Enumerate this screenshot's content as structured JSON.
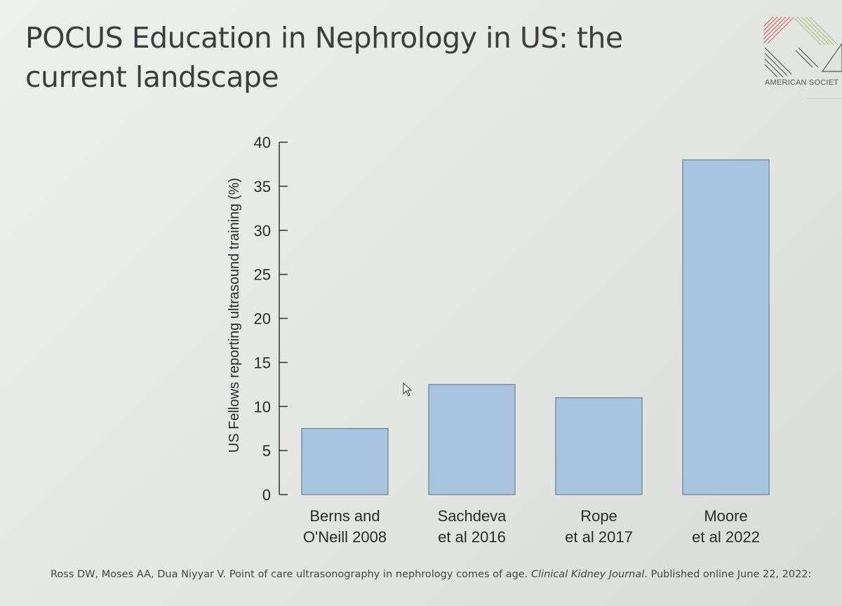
{
  "slide": {
    "title": "POCUS Education in Nephrology in US: the current landscape",
    "logo_text": "AMERICAN SOCIET",
    "citation_authors": "Ross DW, Moses AA, Dua Niyyar V. Point of care ultrasonography in nephrology comes of age. ",
    "citation_journal": "Clinical Kidney Journal",
    "citation_rest": ". Published online June 22, 2022:"
  },
  "chart_data": {
    "type": "bar",
    "categories": [
      [
        "Berns and",
        "O'Neill 2008"
      ],
      [
        "Sachdeva",
        "et al 2016"
      ],
      [
        "Rope",
        "et al 2017"
      ],
      [
        "Moore",
        "et al 2022"
      ]
    ],
    "values": [
      7.5,
      12.5,
      11,
      38
    ],
    "ylabel": "US Fellows reporting ultrasound training (%)",
    "ylim": [
      0,
      40
    ],
    "yticks": [
      0,
      5,
      10,
      15,
      20,
      25,
      30,
      35,
      40
    ],
    "bar_color": "#a9c4df",
    "bar_edge_color": "#6b7f92",
    "grid": false
  }
}
